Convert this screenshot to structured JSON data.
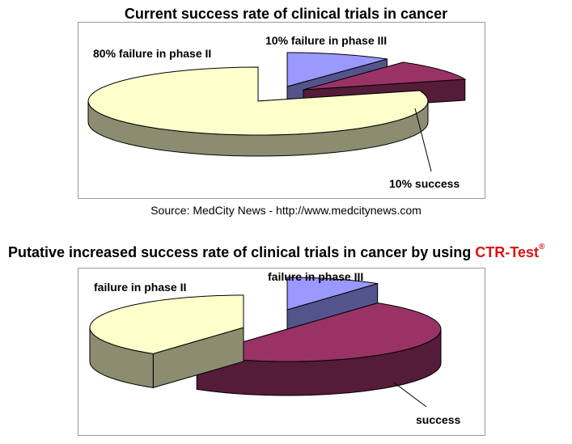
{
  "chart_data": [
    {
      "type": "pie",
      "title": "Current success rate of clinical trials in cancer",
      "labels": [
        "80% failure  in phase II",
        "10% failure  in phase III",
        "10% success"
      ],
      "values": [
        80,
        10,
        10
      ],
      "colors": [
        "#ffffcc",
        "#9999ff",
        "#993366"
      ],
      "source": "Source: MedCity News - http://www.medcitynews.com"
    },
    {
      "type": "pie",
      "title_prefix": "Putative increased success rate of clinical trials in cancer by using ",
      "title_brand": "CTR-Test",
      "title_mark": "®",
      "labels": [
        "failure  in phase II",
        "failure  in phase III",
        "success"
      ],
      "values": [
        40,
        10,
        50
      ],
      "colors": [
        "#ffffcc",
        "#9999ff",
        "#993366"
      ]
    }
  ]
}
